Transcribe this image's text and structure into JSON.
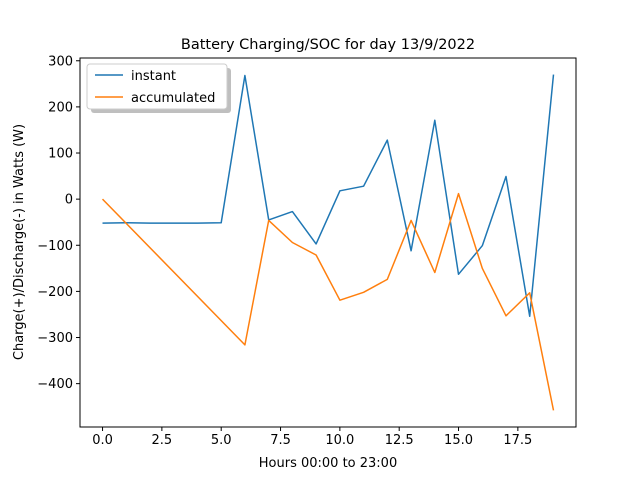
{
  "chart_data": {
    "type": "line",
    "title": "Battery Charging/SOC for day 13/9/2022",
    "xlabel": "Hours 00:00 to 23:00",
    "ylabel": "Charge(+)/Discharge(-) in Watts (W)",
    "xlim": [
      -0.95,
      19.95
    ],
    "ylim": [
      -494,
      306
    ],
    "x_ticks": [
      0,
      2.5,
      5,
      7.5,
      10,
      12.5,
      15,
      17.5
    ],
    "x_tick_labels": [
      "0.0",
      "2.5",
      "5.0",
      "7.5",
      "10.0",
      "12.5",
      "15.0",
      "17.5"
    ],
    "y_ticks": [
      -400,
      -300,
      -200,
      -100,
      0,
      100,
      200,
      300
    ],
    "y_tick_labels": [
      "−400",
      "−300",
      "−200",
      "−100",
      "0",
      "100",
      "200",
      "300"
    ],
    "grid": false,
    "legend_position": "upper-left",
    "series": [
      {
        "name": "instant",
        "color": "#1f77b4",
        "x": [
          0,
          1,
          2,
          3,
          4,
          5,
          6,
          7,
          8,
          9,
          10,
          11,
          12,
          13,
          14,
          15,
          16,
          17,
          18,
          19
        ],
        "values": [
          -52,
          -51,
          -52,
          -52,
          -52,
          -51,
          268,
          -45,
          -27,
          -97,
          18,
          28,
          128,
          -112,
          171,
          -163,
          -101,
          49,
          -254,
          270
        ]
      },
      {
        "name": "accumulated",
        "color": "#ff7f0e",
        "x": [
          0,
          6,
          7,
          8,
          9,
          10,
          11,
          12,
          13,
          14,
          15,
          16,
          17,
          18,
          19
        ],
        "values": [
          0,
          -316,
          -46,
          -94,
          -121,
          -219,
          -202,
          -174,
          -46,
          -159,
          12,
          -150,
          -253,
          -203,
          -458
        ]
      }
    ]
  }
}
